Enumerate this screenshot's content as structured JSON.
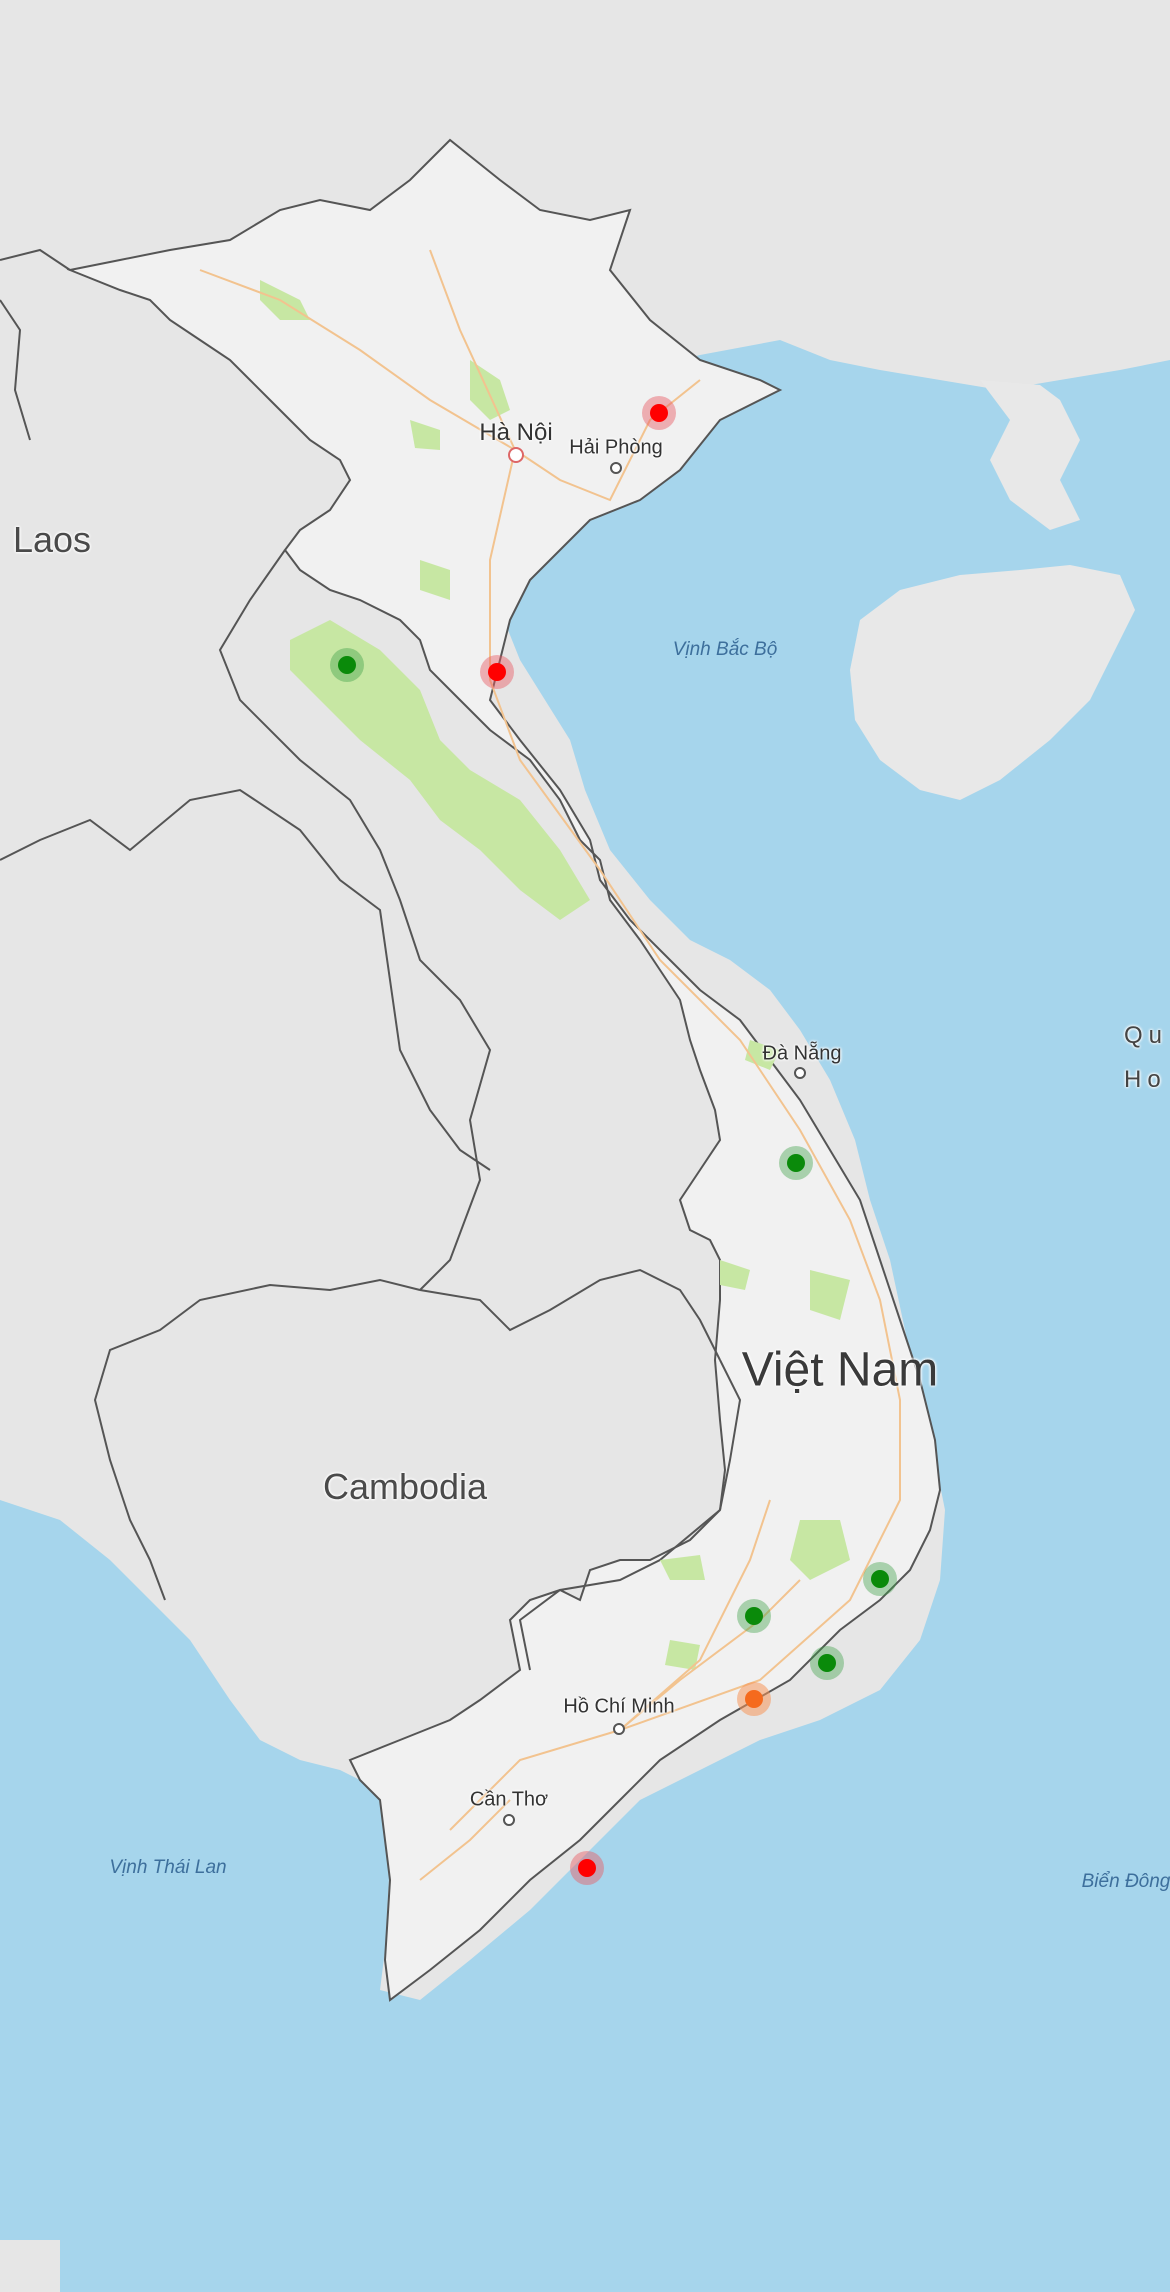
{
  "map": {
    "colors": {
      "water": "#a6d5ec",
      "land": "#e6e6e6",
      "vietnam_land": "#f1f1f1",
      "park": "#c7e7a3",
      "border": "#555555",
      "road": "#f2c38f"
    },
    "labels": {
      "laos": "Laos",
      "cambodia": "Cambodia",
      "vietnam": "Việt Nam",
      "ha_noi": "Hà Nội",
      "hai_phong": "Hải Phòng",
      "da_nang": "Đà Nẵng",
      "ho_chi_minh": "Hồ Chí Minh",
      "can_tho": "Cần Thơ",
      "vinh_bac_bo": "Vịnh Bắc Bộ",
      "vinh_thai_lan": "Vịnh Thái Lan",
      "bien_dong": "Biển Đông",
      "edge_line1": "Qu",
      "edge_line2": "Ho"
    },
    "markers": [
      {
        "name": "marker-red-quang-ninh",
        "status": "red"
      },
      {
        "name": "marker-red-thanh-hoa",
        "status": "red"
      },
      {
        "name": "marker-green-son-la",
        "status": "green"
      },
      {
        "name": "marker-green-quang-ngai",
        "status": "green"
      },
      {
        "name": "marker-green-khanh-hoa",
        "status": "green"
      },
      {
        "name": "marker-green-lam-dong",
        "status": "green"
      },
      {
        "name": "marker-green-ninh-thuan",
        "status": "green"
      },
      {
        "name": "marker-orange-binh-thuan",
        "status": "orange"
      },
      {
        "name": "marker-red-soc-trang",
        "status": "red"
      }
    ]
  }
}
